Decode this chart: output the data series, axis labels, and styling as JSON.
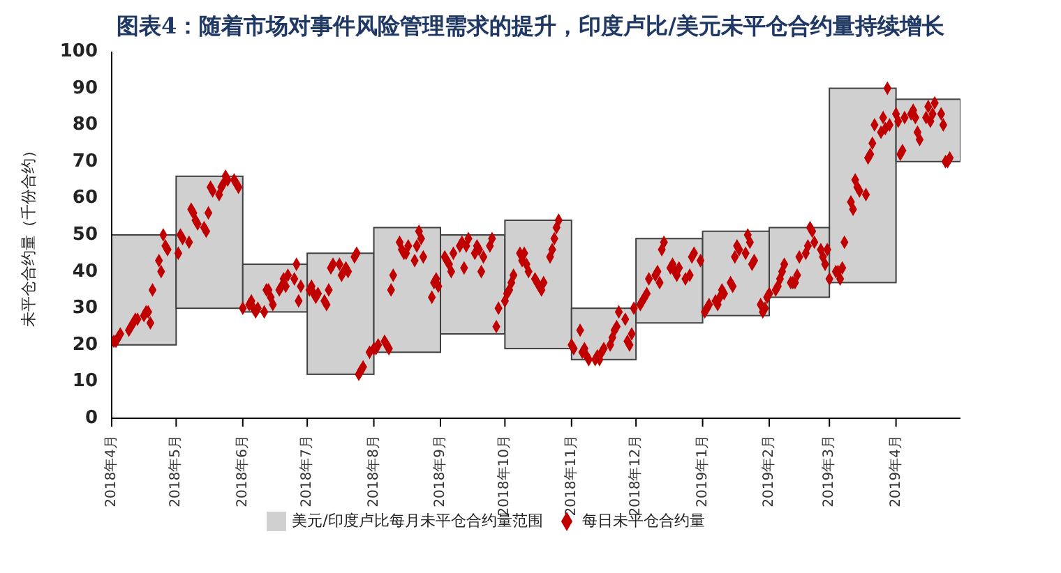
{
  "chart_data": {
    "type": "scatter",
    "title": "图表4：随着市场对事件风险管理需求的提升，印度卢比/美元未平仓合约量持续增长",
    "ylabel": "未平仓合约量（千份合约）",
    "xlim": [
      "2018-04-01",
      "2019-05-01"
    ],
    "xticks": [
      {
        "value": "2018-04-01",
        "label": "2018年4月"
      },
      {
        "value": "2018-05-01",
        "label": "2018年5月"
      },
      {
        "value": "2018-06-01",
        "label": "2018年6月"
      },
      {
        "value": "2018-07-01",
        "label": "2018年7月"
      },
      {
        "value": "2018-08-01",
        "label": "2018年8月"
      },
      {
        "value": "2018-09-01",
        "label": "2018年9月"
      },
      {
        "value": "2018-10-01",
        "label": "2018年10月"
      },
      {
        "value": "2018-11-01",
        "label": "2018年11月"
      },
      {
        "value": "2018-12-01",
        "label": "2018年12月"
      },
      {
        "value": "2019-01-01",
        "label": "2019年1月"
      },
      {
        "value": "2019-02-01",
        "label": "2019年2月"
      },
      {
        "value": "2019-03-01",
        "label": "2019年3月"
      },
      {
        "value": "2019-04-01",
        "label": "2019年4月"
      }
    ],
    "ylim": [
      0,
      100
    ],
    "yticks": [
      0,
      10,
      20,
      30,
      40,
      50,
      60,
      70,
      80,
      90,
      100
    ],
    "grid": false,
    "legend": "bottom",
    "series": [
      {
        "name": "美元/印度卢比每月未平仓合约量范围",
        "type": "bar",
        "color": "#d0d0d0",
        "x": [
          "2018-04-16",
          "2018-05-16",
          "2018-06-16",
          "2018-07-16",
          "2018-08-16",
          "2018-09-16",
          "2018-10-16",
          "2018-11-16",
          "2018-12-16",
          "2019-01-16",
          "2019-02-15",
          "2019-03-16",
          "2019-04-16"
        ],
        "base": [
          20,
          30,
          29,
          12,
          18,
          23,
          19,
          16,
          26,
          28,
          33,
          37,
          70
        ],
        "values": [
          30,
          36,
          13,
          33,
          34,
          27,
          35,
          14,
          23,
          23,
          19,
          53,
          17
        ]
      },
      {
        "name": "每日未平仓合约量",
        "color": "#c00000",
        "marker": "diamond",
        "x": [
          "2018-04-02",
          "2018-04-03",
          "2018-04-04",
          "2018-04-05",
          "2018-04-09",
          "2018-04-10",
          "2018-04-11",
          "2018-04-12",
          "2018-04-13",
          "2018-04-16",
          "2018-04-17",
          "2018-04-18",
          "2018-04-19",
          "2018-04-20",
          "2018-04-23",
          "2018-04-24",
          "2018-04-25",
          "2018-04-26",
          "2018-04-27",
          "2018-05-02",
          "2018-05-03",
          "2018-05-04",
          "2018-05-07",
          "2018-05-08",
          "2018-05-09",
          "2018-05-10",
          "2018-05-11",
          "2018-05-14",
          "2018-05-15",
          "2018-05-16",
          "2018-05-17",
          "2018-05-18",
          "2018-05-21",
          "2018-05-22",
          "2018-05-23",
          "2018-05-24",
          "2018-05-25",
          "2018-05-28",
          "2018-05-29",
          "2018-05-30",
          "2018-06-01",
          "2018-06-04",
          "2018-06-05",
          "2018-06-06",
          "2018-06-07",
          "2018-06-08",
          "2018-06-11",
          "2018-06-12",
          "2018-06-13",
          "2018-06-14",
          "2018-06-15",
          "2018-06-18",
          "2018-06-19",
          "2018-06-20",
          "2018-06-21",
          "2018-06-22",
          "2018-06-25",
          "2018-06-26",
          "2018-06-27",
          "2018-06-28",
          "2018-07-02",
          "2018-07-03",
          "2018-07-04",
          "2018-07-05",
          "2018-07-06",
          "2018-07-09",
          "2018-07-10",
          "2018-07-11",
          "2018-07-12",
          "2018-07-13",
          "2018-07-16",
          "2018-07-17",
          "2018-07-18",
          "2018-07-19",
          "2018-07-20",
          "2018-07-23",
          "2018-07-24",
          "2018-07-25",
          "2018-07-26",
          "2018-07-27",
          "2018-07-30",
          "2018-08-01",
          "2018-08-02",
          "2018-08-03",
          "2018-08-06",
          "2018-08-07",
          "2018-08-08",
          "2018-08-09",
          "2018-08-10",
          "2018-08-13",
          "2018-08-14",
          "2018-08-15",
          "2018-08-16",
          "2018-08-17",
          "2018-08-20",
          "2018-08-21",
          "2018-08-22",
          "2018-08-23",
          "2018-08-24",
          "2018-08-28",
          "2018-08-29",
          "2018-08-30",
          "2018-08-31",
          "2018-09-03",
          "2018-09-04",
          "2018-09-05",
          "2018-09-06",
          "2018-09-07",
          "2018-09-10",
          "2018-09-11",
          "2018-09-12",
          "2018-09-13",
          "2018-09-14",
          "2018-09-17",
          "2018-09-18",
          "2018-09-19",
          "2018-09-20",
          "2018-09-21",
          "2018-09-24",
          "2018-09-25",
          "2018-09-27",
          "2018-09-28",
          "2018-10-01",
          "2018-10-02",
          "2018-10-03",
          "2018-10-04",
          "2018-10-05",
          "2018-10-08",
          "2018-10-09",
          "2018-10-10",
          "2018-10-11",
          "2018-10-12",
          "2018-10-15",
          "2018-10-16",
          "2018-10-17",
          "2018-10-18",
          "2018-10-19",
          "2018-10-22",
          "2018-10-23",
          "2018-10-24",
          "2018-10-25",
          "2018-10-26",
          "2018-11-01",
          "2018-11-02",
          "2018-11-05",
          "2018-11-06",
          "2018-11-07",
          "2018-11-08",
          "2018-11-09",
          "2018-11-12",
          "2018-11-13",
          "2018-11-14",
          "2018-11-15",
          "2018-11-16",
          "2018-11-19",
          "2018-11-20",
          "2018-11-21",
          "2018-11-22",
          "2018-11-23",
          "2018-11-26",
          "2018-11-27",
          "2018-11-28",
          "2018-11-29",
          "2018-11-30",
          "2018-12-03",
          "2018-12-04",
          "2018-12-05",
          "2018-12-06",
          "2018-12-07",
          "2018-12-10",
          "2018-12-11",
          "2018-12-12",
          "2018-12-13",
          "2018-12-14",
          "2018-12-17",
          "2018-12-18",
          "2018-12-19",
          "2018-12-20",
          "2018-12-21",
          "2018-12-24",
          "2018-12-26",
          "2018-12-27",
          "2018-12-28",
          "2018-12-31",
          "2019-01-02",
          "2019-01-03",
          "2019-01-04",
          "2019-01-07",
          "2019-01-08",
          "2019-01-09",
          "2019-01-10",
          "2019-01-11",
          "2019-01-14",
          "2019-01-15",
          "2019-01-16",
          "2019-01-17",
          "2019-01-18",
          "2019-01-21",
          "2019-01-22",
          "2019-01-23",
          "2019-01-24",
          "2019-01-25",
          "2019-01-28",
          "2019-01-29",
          "2019-01-30",
          "2019-01-31",
          "2019-02-01",
          "2019-02-04",
          "2019-02-05",
          "2019-02-06",
          "2019-02-07",
          "2019-02-08",
          "2019-02-11",
          "2019-02-12",
          "2019-02-13",
          "2019-02-14",
          "2019-02-15",
          "2019-02-18",
          "2019-02-19",
          "2019-02-20",
          "2019-02-21",
          "2019-02-22",
          "2019-02-25",
          "2019-02-26",
          "2019-02-27",
          "2019-02-28",
          "2019-03-01",
          "2019-03-04",
          "2019-03-05",
          "2019-03-06",
          "2019-03-07",
          "2019-03-08",
          "2019-03-11",
          "2019-03-12",
          "2019-03-13",
          "2019-03-14",
          "2019-03-15",
          "2019-03-18",
          "2019-03-19",
          "2019-03-20",
          "2019-03-21",
          "2019-03-22",
          "2019-03-25",
          "2019-03-26",
          "2019-03-27",
          "2019-03-28",
          "2019-03-29",
          "2019-04-01",
          "2019-04-02",
          "2019-04-03",
          "2019-04-04",
          "2019-04-05",
          "2019-04-08",
          "2019-04-09",
          "2019-04-10",
          "2019-04-11",
          "2019-04-12",
          "2019-04-15",
          "2019-04-16",
          "2019-04-17",
          "2019-04-18",
          "2019-04-19",
          "2019-04-22",
          "2019-04-23",
          "2019-04-24",
          "2019-04-25",
          "2019-04-26"
        ],
        "values": [
          21,
          21,
          22,
          23,
          24,
          25,
          26,
          27,
          27,
          28,
          29,
          29,
          26,
          35,
          43,
          40,
          50,
          47,
          46,
          45,
          50,
          49,
          48,
          57,
          56,
          54,
          53,
          52,
          51,
          56,
          63,
          62,
          61,
          63,
          64,
          66,
          65,
          65,
          64,
          63,
          30,
          31,
          32,
          30,
          29,
          30,
          29,
          35,
          35,
          33,
          31,
          35,
          36,
          38,
          36,
          39,
          38,
          42,
          32,
          36,
          35,
          36,
          34,
          33,
          34,
          32,
          31,
          35,
          41,
          42,
          42,
          39,
          40,
          41,
          40,
          44,
          45,
          12,
          13,
          14,
          18,
          19,
          19,
          20,
          21,
          20,
          19,
          35,
          39,
          48,
          46,
          45,
          45,
          47,
          43,
          47,
          51,
          49,
          44,
          33,
          37,
          38,
          36,
          44,
          43,
          42,
          40,
          45,
          47,
          48,
          41,
          47,
          49,
          45,
          47,
          46,
          40,
          44,
          47,
          49,
          25,
          30,
          32,
          34,
          35,
          37,
          39,
          45,
          43,
          45,
          42,
          40,
          38,
          37,
          36,
          35,
          37,
          44,
          46,
          49,
          52,
          54,
          20,
          19,
          24,
          18,
          19,
          17,
          16,
          16,
          17,
          16,
          18,
          19,
          20,
          22,
          24,
          25,
          29,
          27,
          21,
          20,
          23,
          30,
          31,
          32,
          33,
          34,
          38,
          39,
          40,
          37,
          46,
          48,
          41,
          42,
          40,
          39,
          41,
          38,
          39,
          44,
          45,
          43,
          29,
          30,
          31,
          32,
          31,
          33,
          35,
          34,
          37,
          36,
          44,
          47,
          46,
          45,
          50,
          48,
          42,
          43,
          31,
          29,
          30,
          33,
          34,
          35,
          36,
          38,
          40,
          42,
          37,
          37,
          37,
          39,
          44,
          45,
          47,
          52,
          51,
          48,
          46,
          44,
          42,
          46,
          38,
          40,
          40,
          38,
          41,
          48,
          59,
          57,
          65,
          63,
          62,
          61,
          71,
          72,
          75,
          80,
          78,
          82,
          79,
          90,
          80,
          83,
          81,
          72,
          73,
          82,
          83,
          84,
          82,
          78,
          76,
          82,
          85,
          81,
          83,
          86,
          83,
          80,
          70,
          70,
          71
        ]
      }
    ]
  }
}
